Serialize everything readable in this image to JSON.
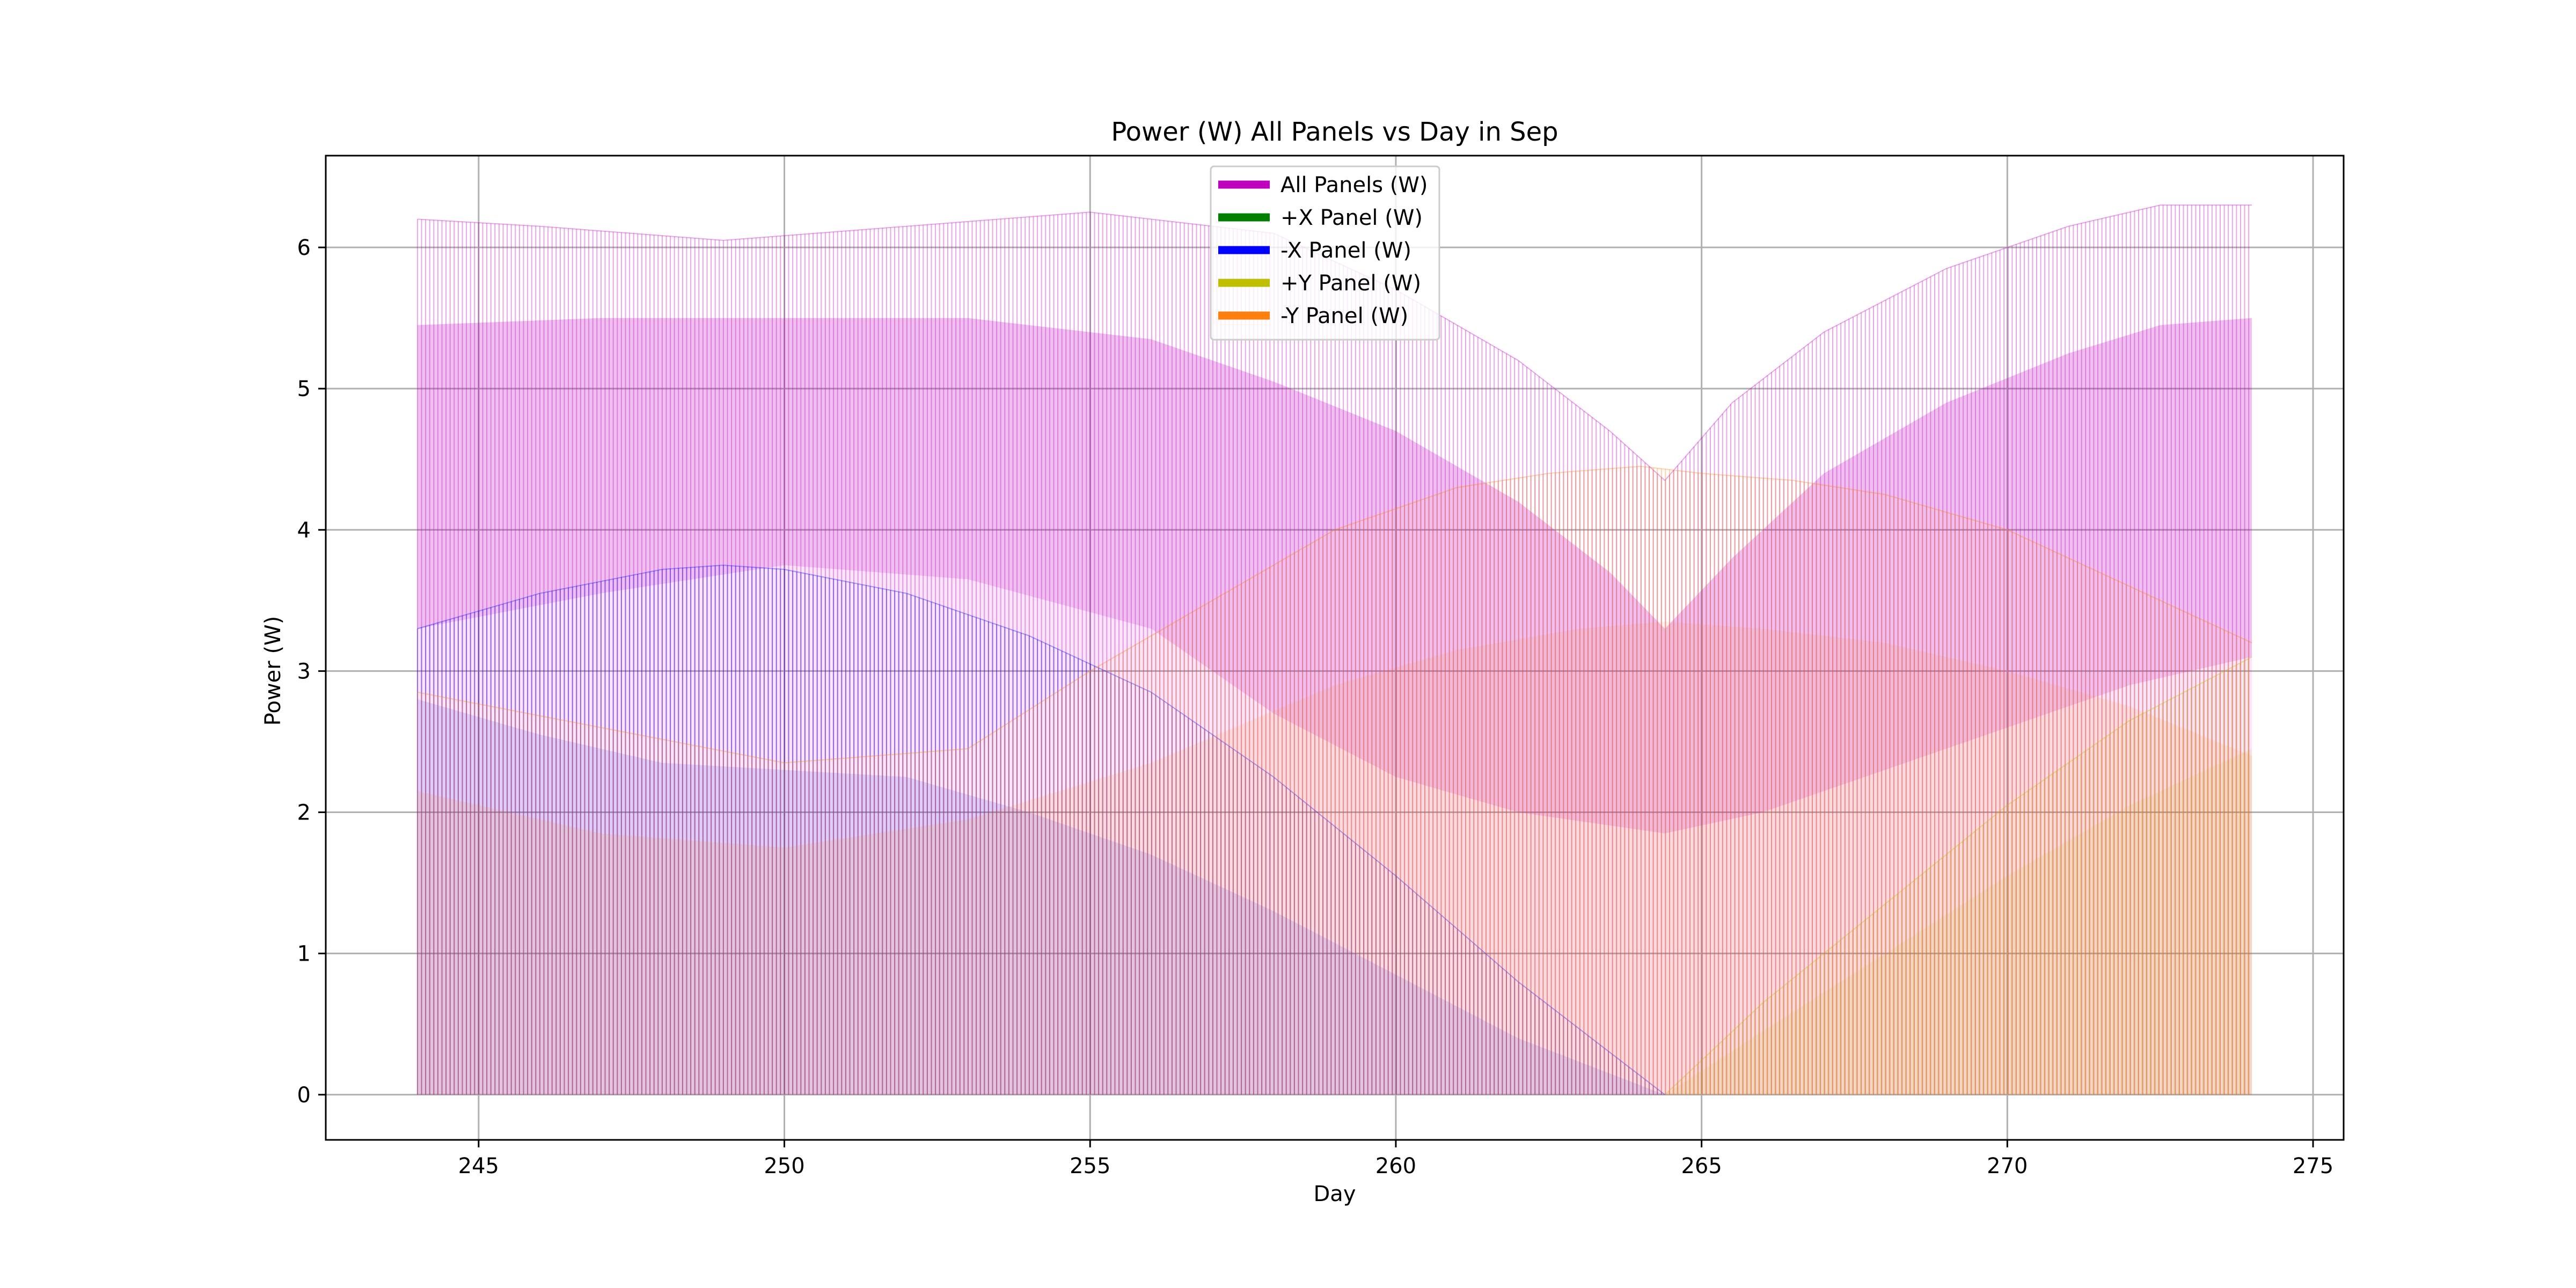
{
  "chart_data": {
    "type": "area",
    "title": "Power (W) All Panels vs Day in Sep",
    "xlabel": "Day",
    "ylabel": "Power (W)",
    "xlim": [
      242.5,
      275.5
    ],
    "ylim": [
      -0.32,
      6.65
    ],
    "xticks": [
      245,
      250,
      255,
      260,
      265,
      270,
      275
    ],
    "yticks": [
      0,
      1,
      2,
      3,
      4,
      5,
      6
    ],
    "grid": true,
    "legend_position": "top-center",
    "period_days": 0.0667,
    "series": [
      {
        "name": "All Panels (W)",
        "color": "#bf00bf",
        "peak": {
          "x": [
            244,
            246,
            249,
            252,
            255,
            258,
            260,
            262,
            263.5,
            264.4,
            265.5,
            267,
            269,
            271,
            272.5,
            274
          ],
          "y": [
            6.2,
            6.15,
            6.05,
            6.15,
            6.25,
            6.1,
            5.7,
            5.2,
            4.7,
            4.35,
            4.9,
            5.4,
            5.85,
            6.15,
            6.3,
            6.3
          ]
        },
        "band_top": {
          "x": [
            244,
            247,
            250,
            253,
            256,
            258,
            260,
            262,
            263.5,
            264.4,
            265.5,
            267,
            269,
            271,
            272.5,
            274
          ],
          "y": [
            5.45,
            5.5,
            5.5,
            5.5,
            5.35,
            5.05,
            4.7,
            4.2,
            3.7,
            3.3,
            3.8,
            4.4,
            4.9,
            5.25,
            5.45,
            5.5
          ]
        },
        "band_bottom": {
          "x": [
            244,
            247,
            250,
            253,
            256,
            258,
            260,
            262,
            264.4,
            266,
            268,
            270,
            272,
            274
          ],
          "y": [
            3.3,
            3.55,
            3.75,
            3.65,
            3.3,
            2.7,
            2.25,
            2.0,
            1.85,
            2.0,
            2.3,
            2.6,
            2.9,
            3.1
          ]
        }
      },
      {
        "name": "+X Panel (W)",
        "color": "#007f00"
      },
      {
        "name": "-X Panel (W)",
        "color": "#0000ff",
        "peak": {
          "x": [
            244,
            246,
            248,
            249,
            250,
            252,
            254,
            256,
            258,
            260,
            262,
            263.5,
            264.4
          ],
          "y": [
            3.3,
            3.55,
            3.72,
            3.75,
            3.72,
            3.55,
            3.25,
            2.85,
            2.25,
            1.55,
            0.8,
            0.3,
            0.0
          ]
        },
        "band_bottom": {
          "x": [
            244,
            246,
            248,
            250,
            252,
            254,
            256,
            258,
            260,
            262,
            264.4
          ],
          "y": [
            2.8,
            2.55,
            2.35,
            2.3,
            2.25,
            2.0,
            1.7,
            1.3,
            0.85,
            0.4,
            0.0
          ]
        }
      },
      {
        "name": "+Y Panel (W)",
        "color": "#bfbf00",
        "peak": {
          "x": [
            264.4,
            266,
            268,
            270,
            272,
            274
          ],
          "y": [
            0.0,
            0.65,
            1.35,
            2.05,
            2.65,
            3.1
          ]
        },
        "band_bottom": {
          "x": [
            264.4,
            266,
            268,
            270,
            272,
            274
          ],
          "y": [
            0.0,
            0.45,
            1.0,
            1.55,
            2.05,
            2.45
          ]
        }
      },
      {
        "name": "-Y Panel (W)",
        "color": "#ff7f0e",
        "peak": {
          "x": [
            244,
            247,
            250,
            253,
            255,
            257,
            259,
            261,
            262.5,
            264,
            265,
            266.5,
            268,
            270,
            272,
            274
          ],
          "y": [
            2.85,
            2.6,
            2.35,
            2.45,
            3.0,
            3.5,
            4.0,
            4.3,
            4.4,
            4.45,
            4.4,
            4.35,
            4.25,
            4.0,
            3.6,
            3.2
          ]
        },
        "band_top": {
          "x": [
            244,
            247,
            250,
            253,
            256,
            259,
            261,
            263,
            264.4,
            266,
            268,
            270,
            272,
            274
          ],
          "y": [
            2.15,
            1.85,
            1.75,
            1.95,
            2.35,
            2.9,
            3.15,
            3.3,
            3.35,
            3.3,
            3.2,
            3.0,
            2.75,
            2.4
          ]
        }
      }
    ]
  }
}
